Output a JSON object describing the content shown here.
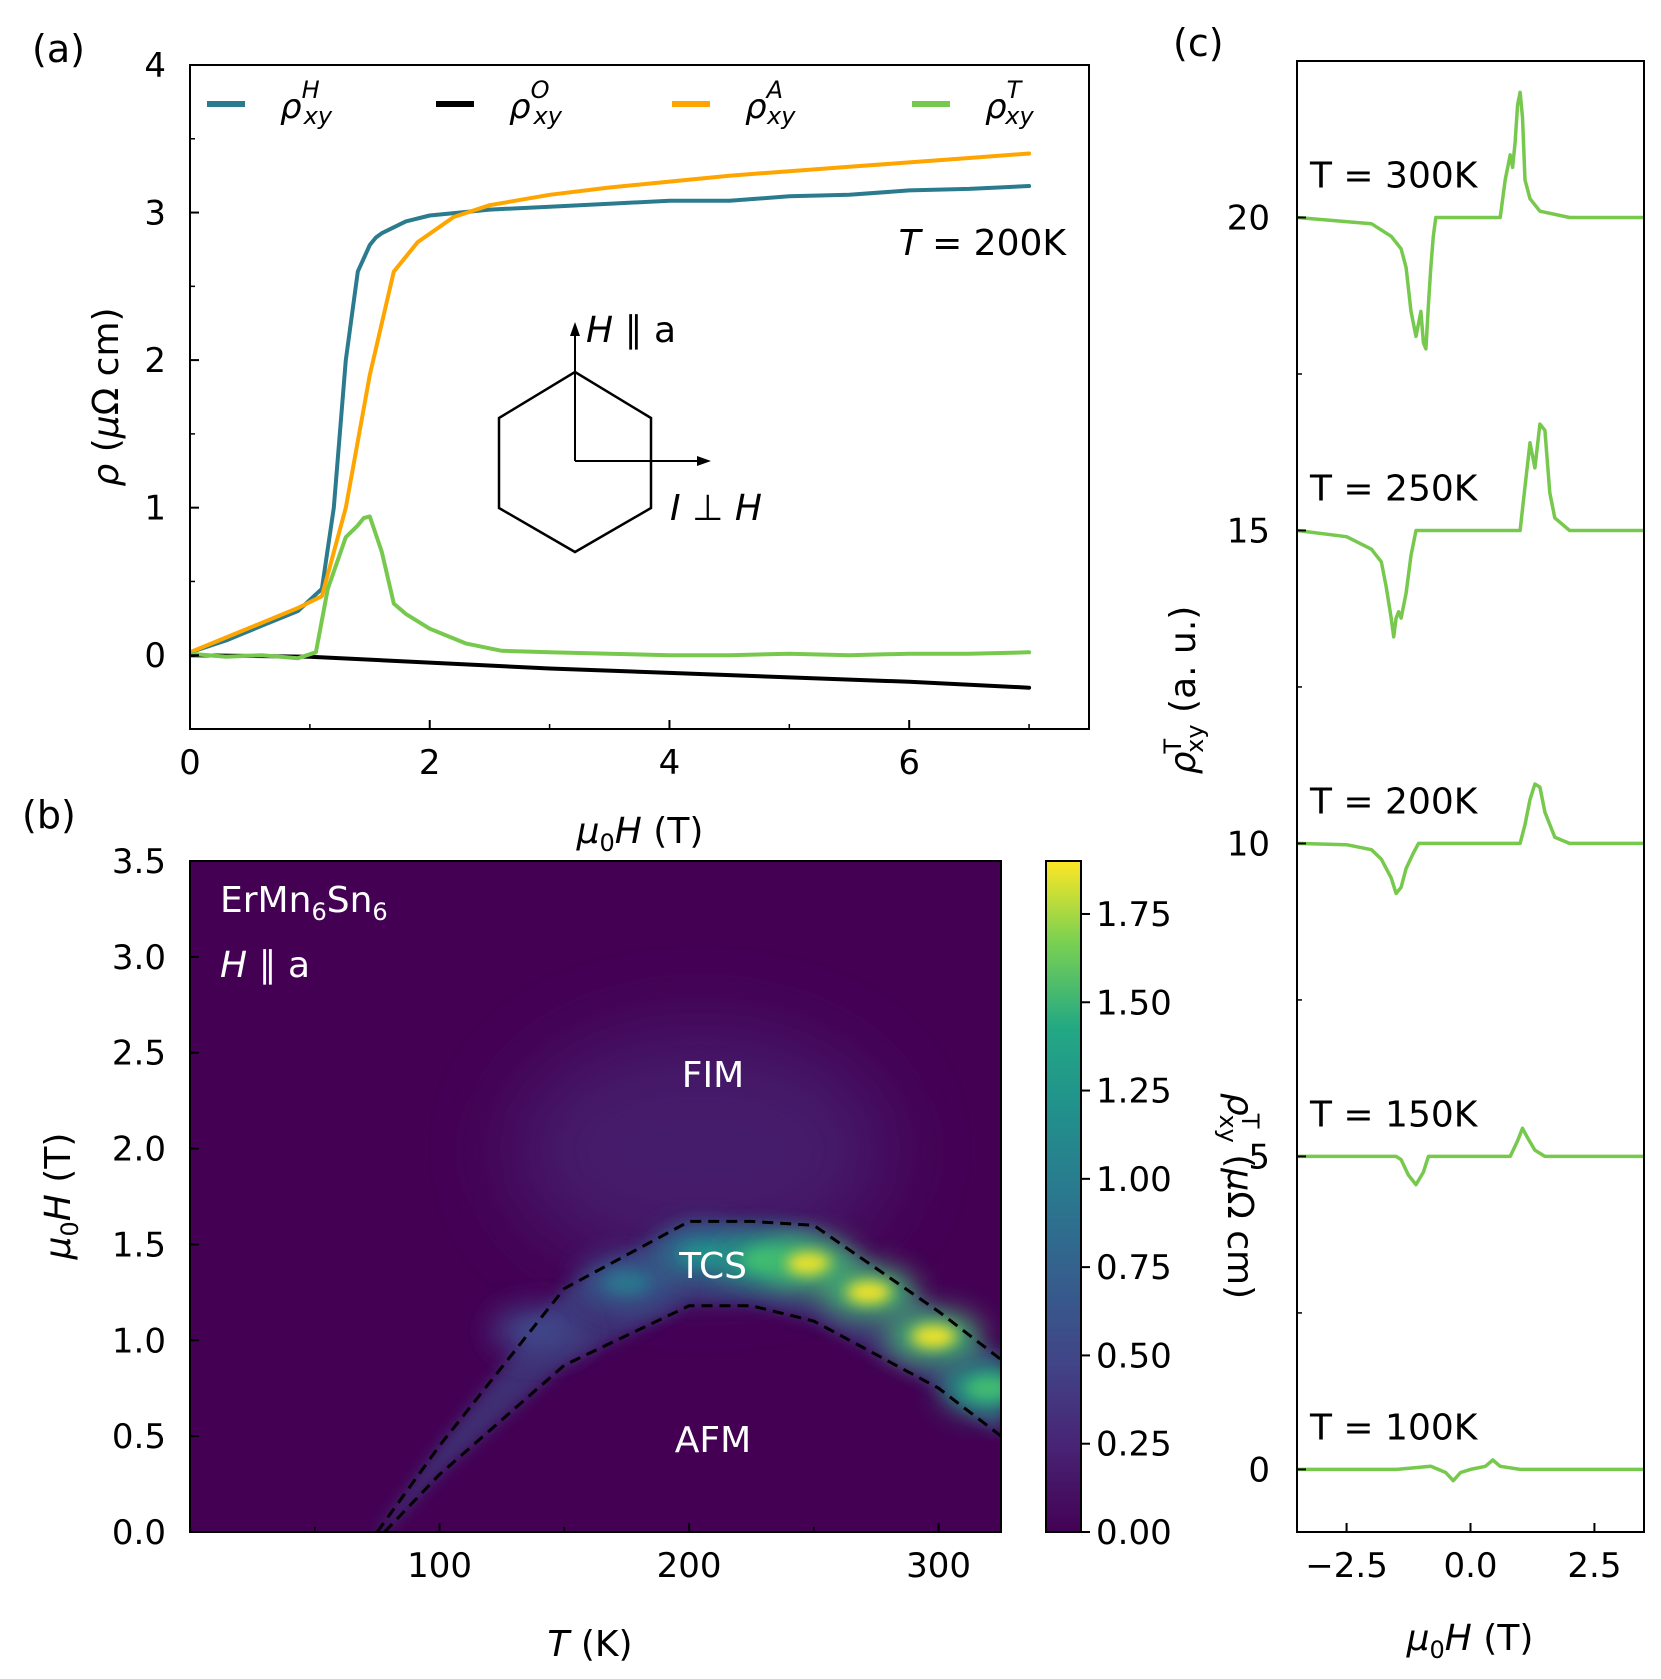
{
  "chart_data": [
    {
      "panel": "(a)",
      "type": "line",
      "xlabel": "μ0H (T)",
      "ylabel": "ρ (μΩ cm)",
      "xlim": [
        0,
        7.5
      ],
      "ylim": [
        -0.5,
        4
      ],
      "xticks": [
        "0",
        "2",
        "4",
        "6"
      ],
      "yticks": [
        "0",
        "1",
        "2",
        "3",
        "4"
      ],
      "annotation": "T = 200K",
      "inset": {
        "label_up": "H ∥ a",
        "label_right": "I ⊥ H"
      },
      "legend_position": "top",
      "series": [
        {
          "name": "ρ^H_xy",
          "base": "ρ",
          "sup": "H",
          "sub": "xy",
          "color": "#2b7b8e",
          "x": [
            0,
            0.3,
            0.6,
            0.9,
            1.1,
            1.2,
            1.3,
            1.4,
            1.5,
            1.55,
            1.6,
            1.7,
            1.8,
            2.0,
            2.5,
            3.0,
            3.5,
            4.0,
            4.5,
            5.0,
            5.5,
            6.0,
            6.5,
            7.0
          ],
          "y": [
            0.02,
            0.1,
            0.2,
            0.3,
            0.45,
            1.0,
            2.0,
            2.6,
            2.78,
            2.83,
            2.86,
            2.9,
            2.94,
            2.98,
            3.02,
            3.04,
            3.06,
            3.08,
            3.08,
            3.11,
            3.12,
            3.15,
            3.16,
            3.18
          ]
        },
        {
          "name": "ρ^O_xy",
          "base": "ρ",
          "sup": "O",
          "sub": "xy",
          "color": "#000000",
          "x": [
            0,
            1,
            2,
            3,
            4,
            5,
            6,
            7
          ],
          "y": [
            0.0,
            -0.01,
            -0.05,
            -0.09,
            -0.12,
            -0.15,
            -0.18,
            -0.22
          ]
        },
        {
          "name": "ρ^A_xy",
          "base": "ρ",
          "sup": "A",
          "sub": "xy",
          "color": "#ffa500",
          "x": [
            0,
            0.3,
            0.6,
            0.9,
            1.1,
            1.3,
            1.5,
            1.7,
            1.9,
            2.2,
            2.5,
            3.0,
            3.5,
            4.0,
            4.5,
            5.0,
            5.5,
            6.0,
            6.5,
            7.0
          ],
          "y": [
            0.02,
            0.12,
            0.22,
            0.32,
            0.4,
            1.0,
            1.9,
            2.6,
            2.8,
            2.97,
            3.05,
            3.12,
            3.17,
            3.21,
            3.25,
            3.28,
            3.31,
            3.34,
            3.37,
            3.4
          ]
        },
        {
          "name": "ρ^T_xy",
          "base": "ρ",
          "sup": "T",
          "sub": "xy",
          "color": "#77c94d",
          "x": [
            0,
            0.3,
            0.6,
            0.9,
            1.05,
            1.15,
            1.3,
            1.4,
            1.45,
            1.5,
            1.6,
            1.7,
            1.8,
            2.0,
            2.3,
            2.6,
            3.0,
            3.5,
            4.0,
            4.5,
            5.0,
            5.5,
            6.0,
            6.5,
            7.0
          ],
          "y": [
            0.01,
            -0.01,
            0.0,
            -0.02,
            0.02,
            0.45,
            0.8,
            0.88,
            0.93,
            0.94,
            0.7,
            0.35,
            0.28,
            0.18,
            0.08,
            0.03,
            0.02,
            0.01,
            0.0,
            0.0,
            0.01,
            0.0,
            0.01,
            0.01,
            0.02
          ]
        }
      ]
    },
    {
      "panel": "(b)",
      "type": "heatmap",
      "xlabel": "T (K)",
      "ylabel": "μ0H (T)",
      "xlim": [
        0,
        325
      ],
      "ylim": [
        0,
        3.5
      ],
      "xticks": [
        "100",
        "200",
        "300"
      ],
      "yticks": [
        "0.0",
        "0.5",
        "1.0",
        "1.5",
        "2.0",
        "2.5",
        "3.0",
        "3.5"
      ],
      "colorbar": {
        "label": "ρ^T_xy (μΩ cm)",
        "range": [
          0,
          1.9
        ],
        "ticks": [
          "0.00",
          "0.25",
          "0.50",
          "0.75",
          "1.00",
          "1.25",
          "1.50",
          "1.75"
        ]
      },
      "material": "ErMn6Sn6",
      "field_direction": "H ∥ a",
      "region_labels": [
        "FIM",
        "TCS",
        "AFM"
      ],
      "upper_boundary": {
        "x": [
          75,
          100,
          150,
          200,
          225,
          250,
          300,
          325
        ],
        "y": [
          0,
          0.45,
          1.27,
          1.62,
          1.62,
          1.6,
          1.15,
          0.9
        ]
      },
      "lower_boundary": {
        "x": [
          78,
          100,
          150,
          200,
          225,
          250,
          300,
          325
        ],
        "y": [
          0,
          0.3,
          0.87,
          1.18,
          1.18,
          1.1,
          0.75,
          0.5
        ]
      },
      "hotspots": [
        {
          "T": 140,
          "H": 1.05,
          "value": 0.45
        },
        {
          "T": 175,
          "H": 1.3,
          "value": 0.7
        },
        {
          "T": 205,
          "H": 1.45,
          "value": 1.0
        },
        {
          "T": 230,
          "H": 1.42,
          "value": 1.4
        },
        {
          "T": 248,
          "H": 1.4,
          "value": 1.85
        },
        {
          "T": 272,
          "H": 1.25,
          "value": 1.85
        },
        {
          "T": 298,
          "H": 1.02,
          "value": 1.85
        },
        {
          "T": 320,
          "H": 0.75,
          "value": 1.4
        }
      ]
    },
    {
      "panel": "(c)",
      "type": "line",
      "xlabel": "μ0H (T)",
      "ylabel": "ρ^T_xy (a. u.)",
      "xlim": [
        -3.5,
        3.5
      ],
      "ylim": [
        -1,
        22.5
      ],
      "xticks": [
        "−2.5",
        "0.0",
        "2.5"
      ],
      "xtick_values": [
        -2.5,
        0,
        2.5
      ],
      "yticks": [
        "0",
        "5",
        "10",
        "15",
        "20"
      ],
      "color": "#77c94d",
      "series": [
        {
          "name": "T = 100K",
          "offset": 0,
          "x": [
            -3.5,
            -1.5,
            -0.8,
            -0.5,
            -0.35,
            -0.2,
            0,
            0.3,
            0.45,
            0.6,
            1.0,
            3.5
          ],
          "y": [
            0,
            0,
            0.05,
            -0.05,
            -0.18,
            -0.05,
            0,
            0.05,
            0.15,
            0.05,
            0,
            0
          ]
        },
        {
          "name": "T = 150K",
          "offset": 5,
          "x": [
            -3.5,
            -1.5,
            -1.4,
            -1.25,
            -1.1,
            -0.95,
            -0.85,
            0,
            0.8,
            0.95,
            1.05,
            1.15,
            1.3,
            1.5,
            3.5
          ],
          "y": [
            5,
            5,
            4.95,
            4.7,
            4.55,
            4.75,
            5,
            5,
            5,
            5.25,
            5.45,
            5.3,
            5.1,
            5,
            5
          ]
        },
        {
          "name": "T = 200K",
          "offset": 10,
          "x": [
            -3.5,
            -2.5,
            -2.0,
            -1.8,
            -1.6,
            -1.5,
            -1.4,
            -1.3,
            -1.15,
            -1.05,
            0,
            1.0,
            1.1,
            1.2,
            1.3,
            1.4,
            1.5,
            1.7,
            2.0,
            3.5
          ],
          "y": [
            10,
            9.98,
            9.9,
            9.75,
            9.45,
            9.2,
            9.3,
            9.6,
            9.85,
            10,
            10,
            10,
            10.3,
            10.7,
            10.95,
            10.9,
            10.5,
            10.1,
            10,
            10
          ]
        },
        {
          "name": "T = 250K",
          "offset": 15,
          "x": [
            -3.5,
            -2.5,
            -2.0,
            -1.8,
            -1.7,
            -1.6,
            -1.55,
            -1.5,
            -1.45,
            -1.4,
            -1.3,
            -1.2,
            -1.1,
            -1.0,
            0,
            1.0,
            1.1,
            1.2,
            1.3,
            1.4,
            1.5,
            1.6,
            1.7,
            2.0,
            3.5
          ],
          "y": [
            15,
            14.9,
            14.7,
            14.5,
            14.1,
            13.6,
            13.3,
            13.6,
            13.7,
            13.6,
            14.0,
            14.6,
            15.0,
            15.0,
            15.0,
            15.0,
            15.7,
            16.4,
            16.0,
            16.7,
            16.6,
            15.6,
            15.2,
            15.0,
            15.0
          ]
        },
        {
          "name": "T = 300K",
          "offset": 20,
          "x": [
            -3.5,
            -2.0,
            -1.6,
            -1.4,
            -1.3,
            -1.2,
            -1.1,
            -1.0,
            -0.95,
            -0.9,
            -0.85,
            -0.8,
            -0.75,
            -0.7,
            -0.6,
            -0.5,
            0,
            0.6,
            0.7,
            0.8,
            0.85,
            0.9,
            0.95,
            1.0,
            1.05,
            1.1,
            1.2,
            1.4,
            2.0,
            3.5
          ],
          "y": [
            20,
            19.9,
            19.7,
            19.5,
            19.2,
            18.5,
            18.1,
            18.5,
            18.0,
            17.9,
            18.6,
            19.2,
            19.7,
            20.0,
            20.0,
            20.0,
            20.0,
            20.0,
            20.6,
            21.0,
            20.8,
            21.2,
            21.8,
            22.0,
            21.6,
            20.6,
            20.3,
            20.1,
            20.0,
            20.0
          ]
        }
      ]
    }
  ]
}
